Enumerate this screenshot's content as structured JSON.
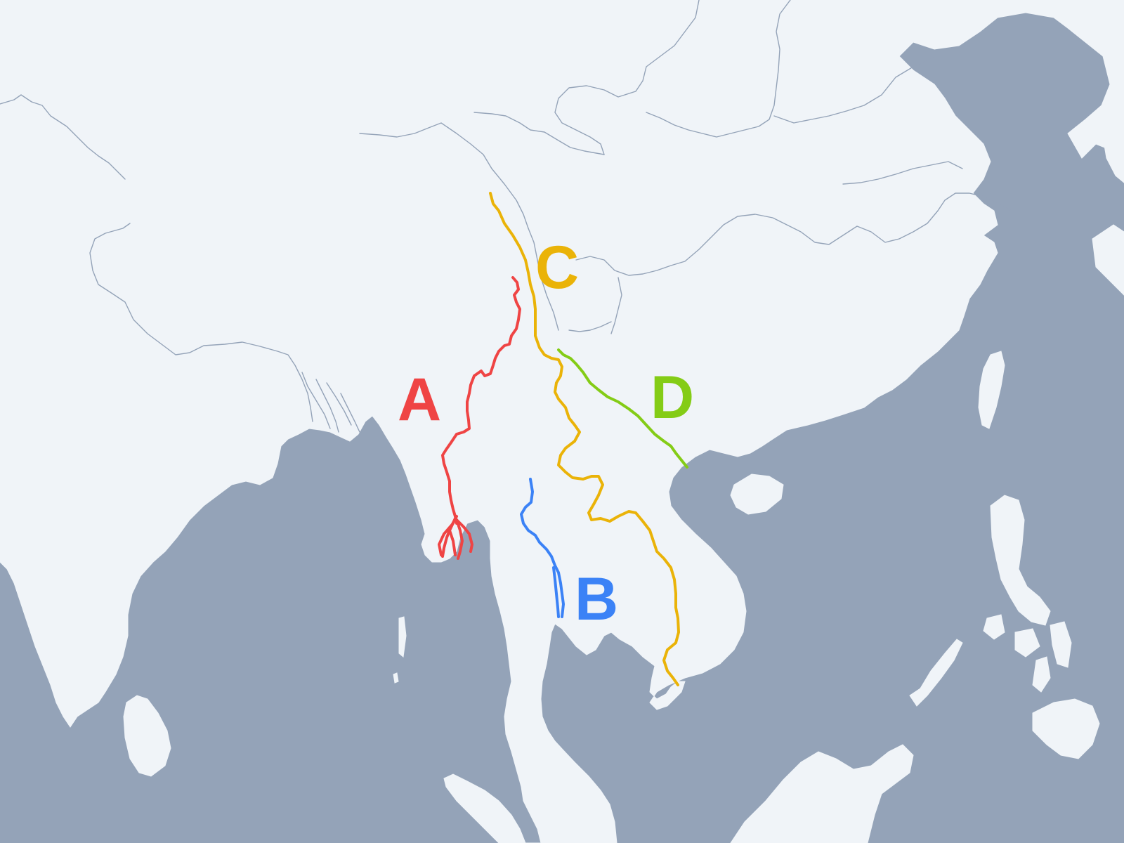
{
  "map": {
    "colors": {
      "sea": "#94a3b8",
      "land": "#f0f4f8",
      "minor_river": "#94a3b8"
    },
    "rivers": [
      {
        "label": "A",
        "color": "#ef4444"
      },
      {
        "label": "B",
        "color": "#3b82f6"
      },
      {
        "label": "C",
        "color": "#eab308"
      },
      {
        "label": "D",
        "color": "#84cc16"
      }
    ]
  }
}
